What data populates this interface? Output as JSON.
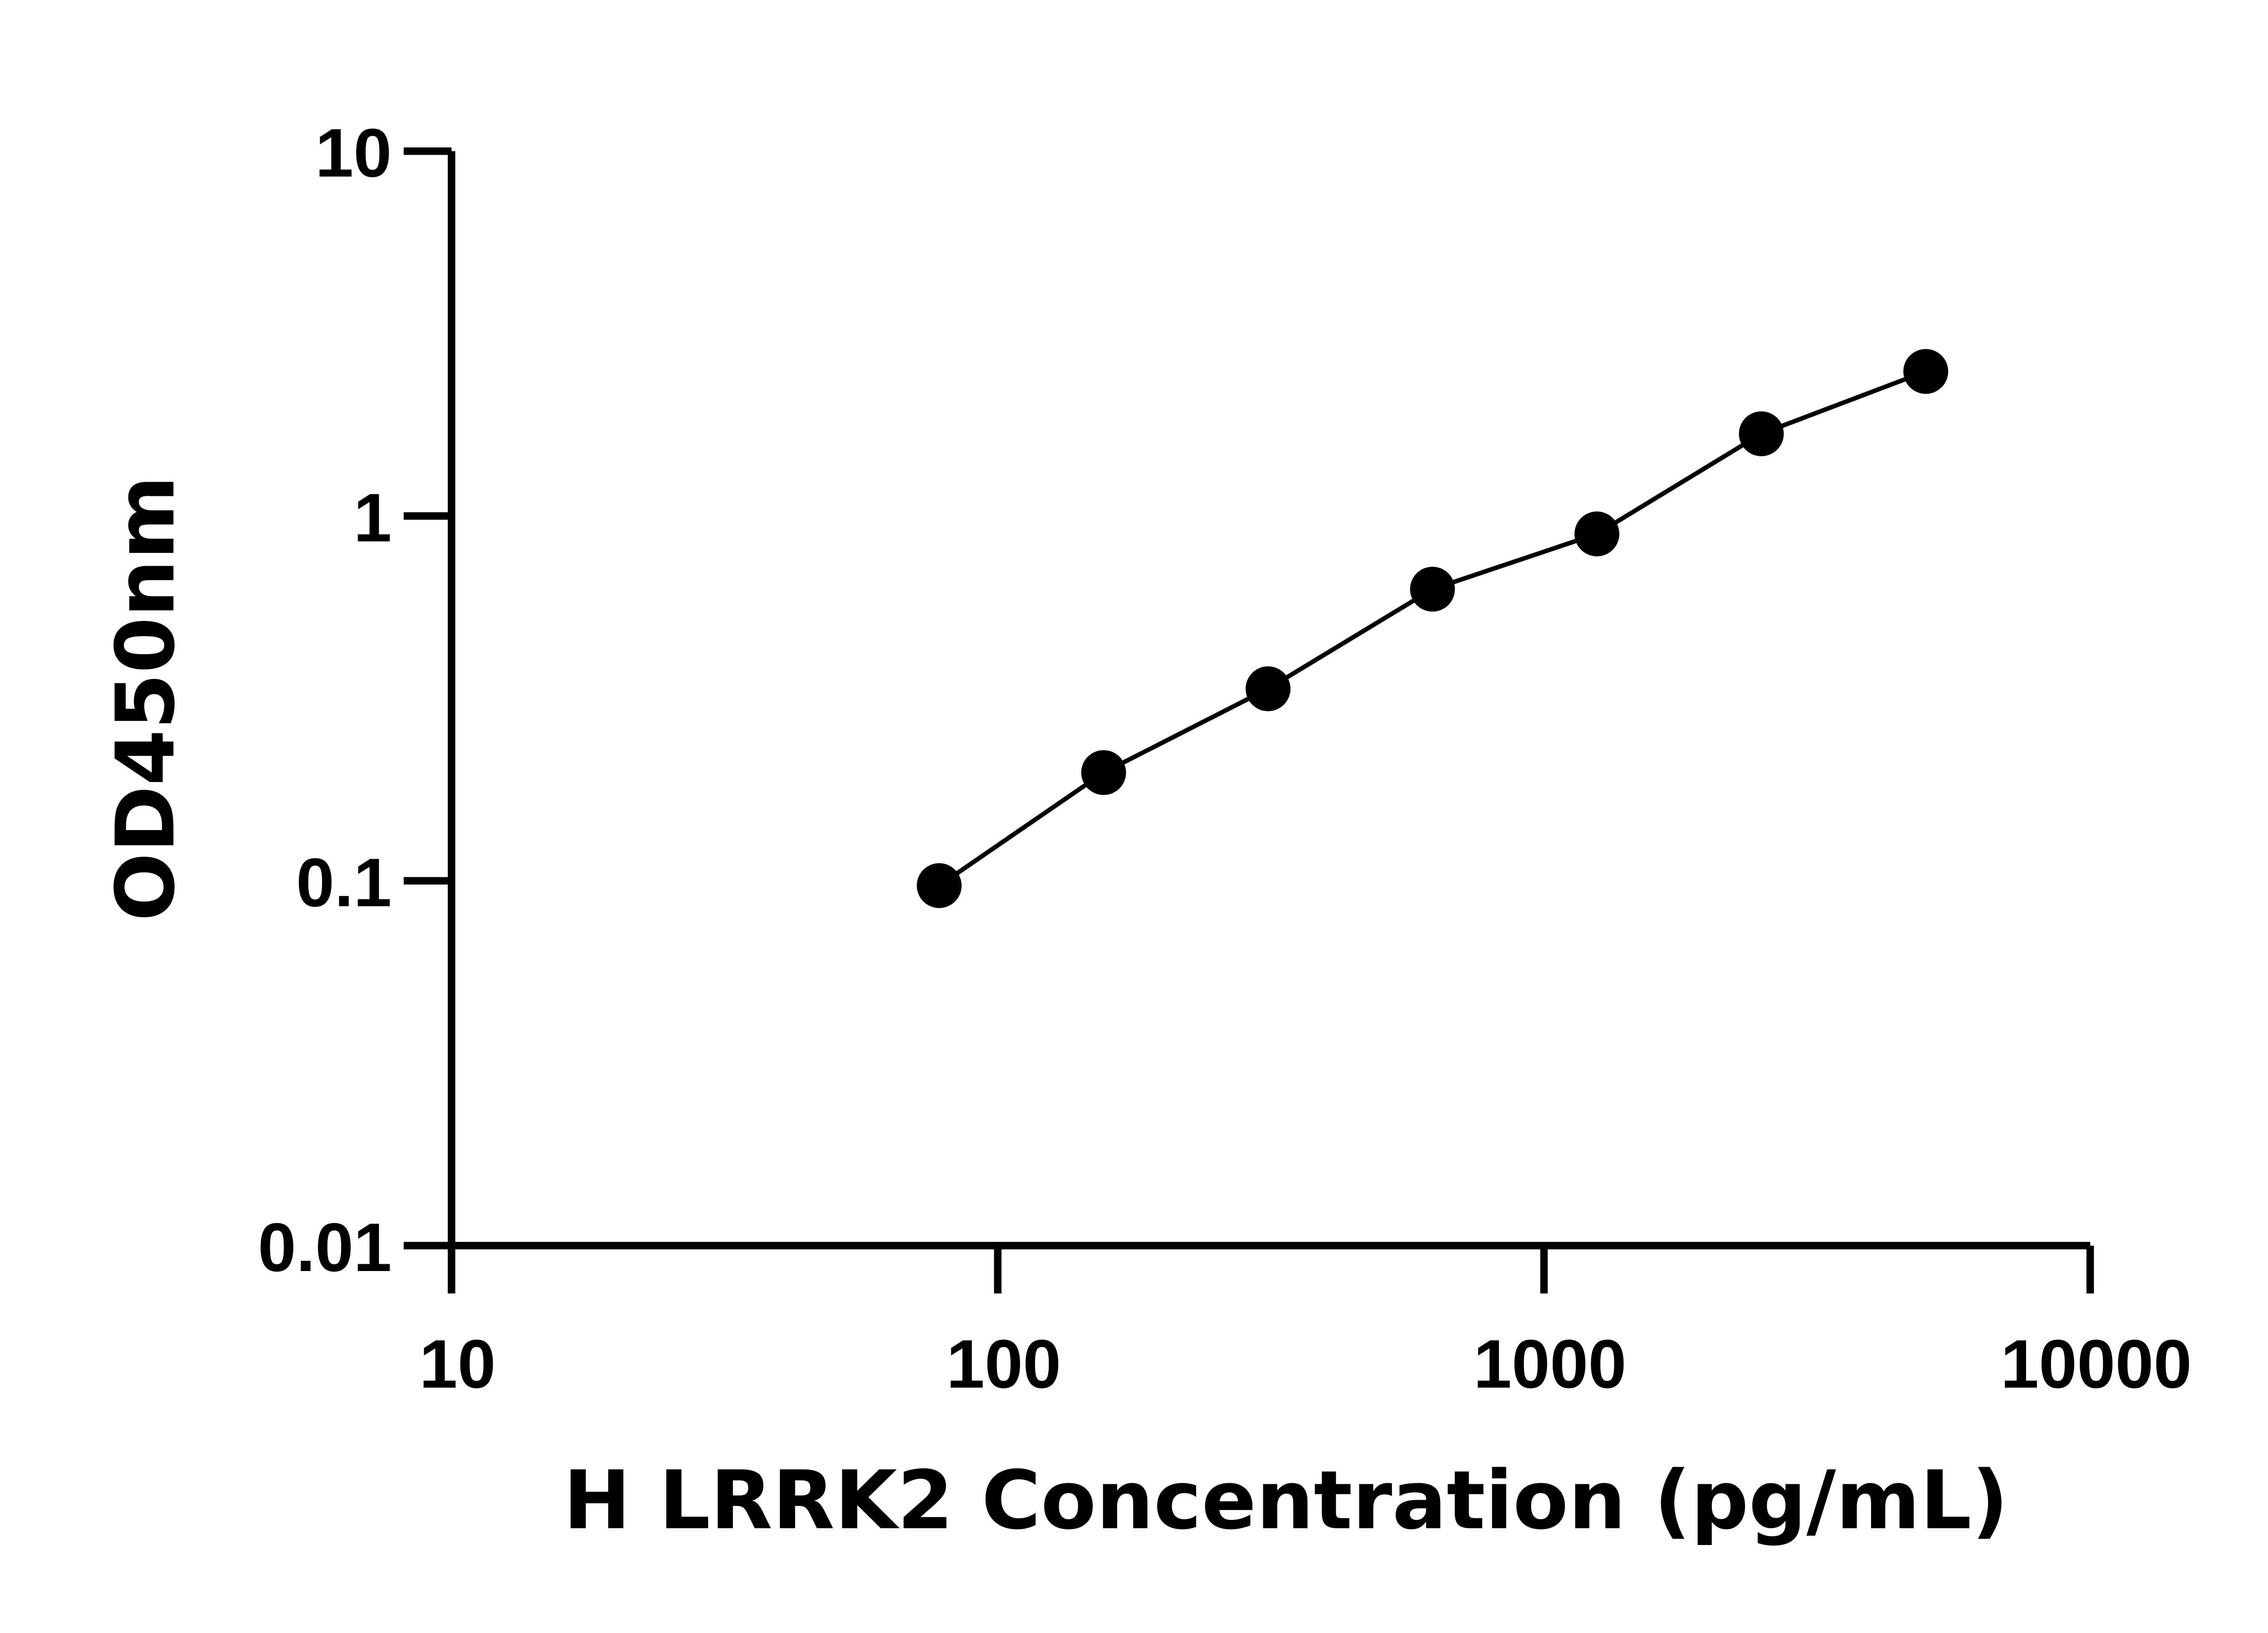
{
  "chart_data": {
    "type": "line",
    "xlabel": "H LRRK2 Concentration (pg/mL)",
    "ylabel": "OD450nm",
    "xscale": "log",
    "yscale": "log",
    "xlim": [
      10,
      10000
    ],
    "ylim": [
      0.01,
      10
    ],
    "xticks": [
      "10",
      "100",
      "1000",
      "10000"
    ],
    "yticks": [
      "0.01",
      "0.1",
      "1",
      "10"
    ],
    "grid": false,
    "colors": {
      "points": "#000000",
      "line": "#000000"
    },
    "series": [
      {
        "x": [
          78.125,
          156.25,
          312.5,
          625,
          1250,
          2500,
          5000
        ],
        "y": [
          0.097,
          0.198,
          0.336,
          0.63,
          0.893,
          1.68,
          2.49
        ]
      }
    ]
  }
}
